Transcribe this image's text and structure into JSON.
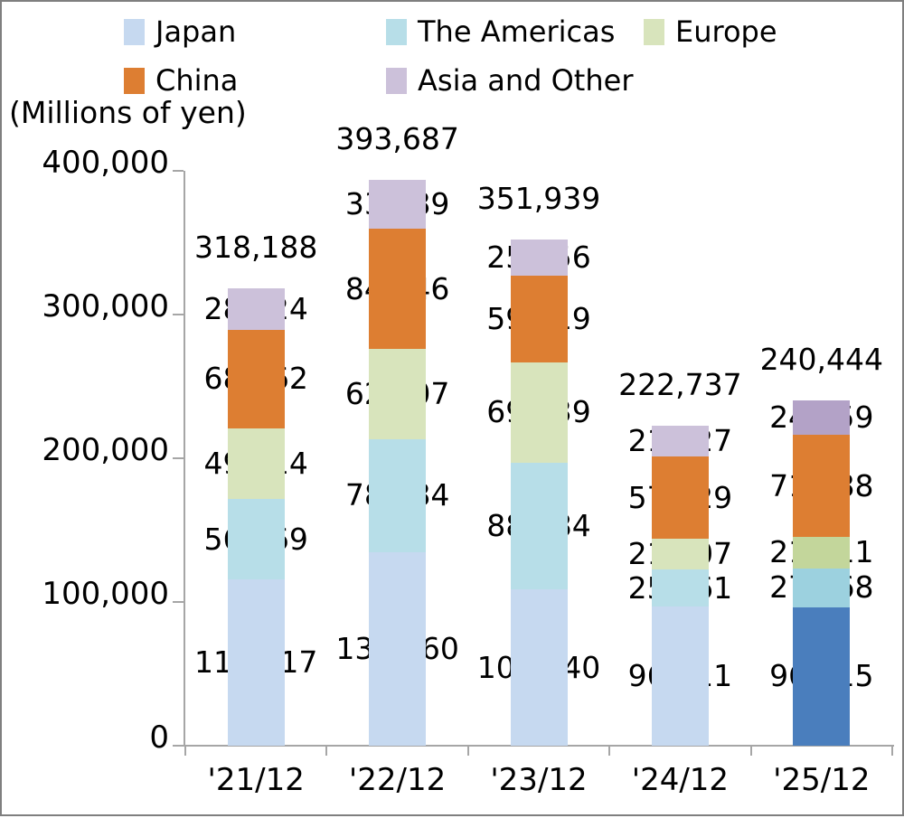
{
  "chart_data": {
    "type": "bar",
    "stacked": true,
    "title": "(Millions of yen)",
    "categories": [
      "'21/12",
      "'22/12",
      "'23/12",
      "'24/12",
      "'25/12"
    ],
    "series": [
      {
        "name": "Japan",
        "color": "#C6D9F0",
        "final_color": "#4A7EBD",
        "values": [
          115517,
          134660,
          108740,
          96811,
          96415
        ],
        "value_labels": [
          "115,517",
          "134,660",
          "108,740",
          "96,811",
          "96,415"
        ]
      },
      {
        "name": "The Americas",
        "color": "#B7DEE8",
        "final_color": "#9CD1DF",
        "values": [
          56369,
          78684,
          88384,
          25861,
          27168
        ],
        "value_labels": [
          "56,369",
          "78,684",
          "88,384",
          "25,861",
          "27,168"
        ]
      },
      {
        "name": "Europe",
        "color": "#D8E4BC",
        "final_color": "#C3D69B",
        "values": [
          49014,
          62507,
          69839,
          21107,
          21611
        ],
        "value_labels": [
          "49,014",
          "62,507",
          "69,839",
          "21,107",
          "21,611"
        ]
      },
      {
        "name": "China",
        "color": "#DD7E32",
        "final_color": "#DD7E32",
        "values": [
          68662,
          84046,
          59919,
          57429,
          71188
        ],
        "value_labels": [
          "68,662",
          "84,046",
          "59,919",
          "57,429",
          "71,188"
        ]
      },
      {
        "name": "Asia and Other",
        "color": "#CCC1DA",
        "final_color": "#B3A2C7",
        "values": [
          28624,
          33789,
          25056,
          21527,
          24059
        ],
        "value_labels": [
          "28,624",
          "33,789",
          "25,056",
          "21,527",
          "24,059"
        ]
      }
    ],
    "totals": [
      318188,
      393687,
      351939,
      222737,
      240444
    ],
    "total_labels": [
      "318,188",
      "393,687",
      "351,939",
      "222,737",
      "240,444"
    ],
    "ylim": [
      0,
      400000
    ],
    "yticks": [
      {
        "value": 400000,
        "label": "400,000"
      },
      {
        "value": 300000,
        "label": "300,000"
      },
      {
        "value": 200000,
        "label": "200,000"
      },
      {
        "value": 100000,
        "label": "100,000"
      },
      {
        "value": 0,
        "label": "0"
      }
    ],
    "legend_rows": [
      [
        0,
        1,
        2
      ],
      [
        3,
        4
      ]
    ],
    "legend_position": "top",
    "grid": false,
    "axis_color": "#A6A6A6",
    "text_color": "#000000",
    "highlight_last_category": true
  }
}
